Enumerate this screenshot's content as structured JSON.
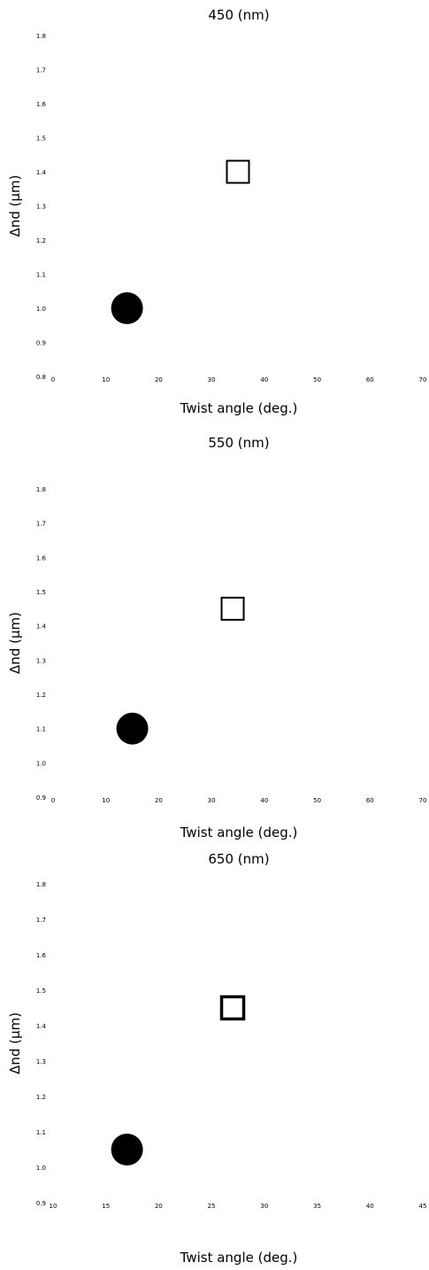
{
  "chart_data": [
    {
      "type": "scatter",
      "title": "450 (nm)",
      "xlabel": "Twist angle (deg.)",
      "ylabel": "Δnd (μm)",
      "x_ticks": [
        "0",
        "10",
        "20",
        "30",
        "40",
        "50",
        "60",
        "70"
      ],
      "y_ticks": [
        "0.8",
        "0.9",
        "1.0",
        "1.1",
        "1.2",
        "1.3",
        "1.4",
        "1.5",
        "1.6",
        "1.7",
        "1.8"
      ],
      "xlim": [
        0,
        70
      ],
      "ylim": [
        0.8,
        1.8
      ],
      "grid": false,
      "points": [
        {
          "x": 14,
          "y": 1.0,
          "marker": "circle-filled",
          "color": "#000000"
        },
        {
          "x": 35,
          "y": 1.4,
          "marker": "square-open",
          "color": "#000000"
        }
      ]
    },
    {
      "type": "scatter",
      "title": "550 (nm)",
      "xlabel": "Twist angle (deg.)",
      "ylabel": "Δnd (μm)",
      "x_ticks": [
        "0",
        "10",
        "20",
        "30",
        "40",
        "50",
        "60",
        "70"
      ],
      "y_ticks": [
        "0.9",
        "1.0",
        "1.1",
        "1.2",
        "1.3",
        "1.4",
        "1.5",
        "1.6",
        "1.7",
        "1.8"
      ],
      "xlim": [
        0,
        70
      ],
      "ylim": [
        0.9,
        1.8
      ],
      "grid": false,
      "points": [
        {
          "x": 15,
          "y": 1.1,
          "marker": "circle-filled",
          "color": "#000000"
        },
        {
          "x": 34,
          "y": 1.45,
          "marker": "square-open",
          "color": "#000000"
        }
      ]
    },
    {
      "type": "scatter",
      "title": "650 (nm)",
      "xlabel": "Twist angle (deg.)",
      "ylabel": "Δnd (μm)",
      "x_ticks": [
        "10",
        "15",
        "20",
        "25",
        "30",
        "35",
        "40",
        "45"
      ],
      "y_ticks": [
        "0.9",
        "1.0",
        "1.1",
        "1.2",
        "1.3",
        "1.4",
        "1.5",
        "1.6",
        "1.7",
        "1.8"
      ],
      "xlim": [
        10,
        45
      ],
      "ylim": [
        0.9,
        1.8
      ],
      "grid": false,
      "points": [
        {
          "x": 17,
          "y": 1.05,
          "marker": "circle-filled",
          "color": "#000000"
        },
        {
          "x": 27,
          "y": 1.45,
          "marker": "square-open",
          "color": "#000000"
        }
      ]
    }
  ]
}
